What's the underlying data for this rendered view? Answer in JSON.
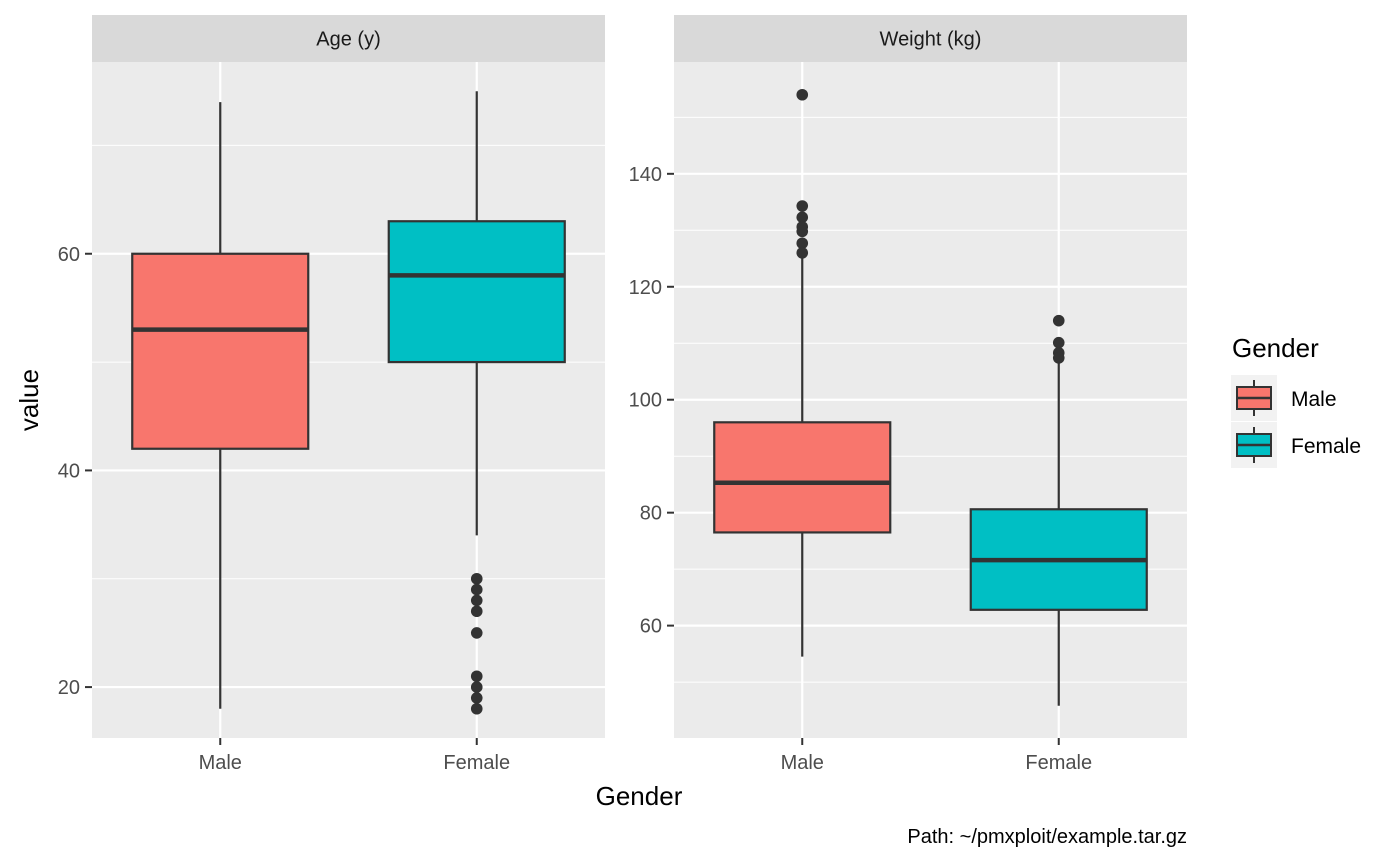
{
  "chart_data": {
    "type": "box",
    "xlabel": "Gender",
    "ylabel": "value",
    "caption": "Path: ~/pmxploit/example.tar.gz",
    "legend": {
      "title": "Gender",
      "position": "right",
      "entries": [
        {
          "label": "Male",
          "color": "#F8766D"
        },
        {
          "label": "Female",
          "color": "#00BFC4"
        }
      ]
    },
    "grid": true,
    "facets": [
      {
        "strip": "Age (y)",
        "ylim": [
          15.3,
          77.7
        ],
        "yticks": [
          20,
          40,
          60
        ],
        "yticks_minor": [
          30,
          50,
          70
        ],
        "categories": [
          "Male",
          "Female"
        ],
        "boxes": [
          {
            "category": "Male",
            "whisker_low": 18,
            "q1": 42,
            "median": 53,
            "q3": 60,
            "whisker_high": 74,
            "outliers": []
          },
          {
            "category": "Female",
            "whisker_low": 34,
            "q1": 50,
            "median": 58,
            "q3": 63,
            "whisker_high": 75,
            "outliers": [
              30,
              29,
              28,
              27,
              25,
              21,
              20,
              19,
              18
            ]
          }
        ]
      },
      {
        "strip": "Weight (kg)",
        "ylim": [
          40.1,
          159.8
        ],
        "yticks": [
          60,
          80,
          100,
          120,
          140
        ],
        "yticks_minor": [
          50,
          70,
          90,
          110,
          130,
          150
        ],
        "categories": [
          "Male",
          "Female"
        ],
        "boxes": [
          {
            "category": "Male",
            "whisker_low": 54.5,
            "q1": 76.5,
            "median": 85.3,
            "q3": 96,
            "whisker_high": 125,
            "outliers": [
              154,
              134.3,
              132.3,
              130.6,
              129.8,
              127.7,
              126
            ]
          },
          {
            "category": "Female",
            "whisker_low": 45.8,
            "q1": 62.8,
            "median": 71.6,
            "q3": 80.6,
            "whisker_high": 107,
            "outliers": [
              114,
              110.1,
              108.3,
              107.4
            ]
          }
        ]
      }
    ]
  }
}
